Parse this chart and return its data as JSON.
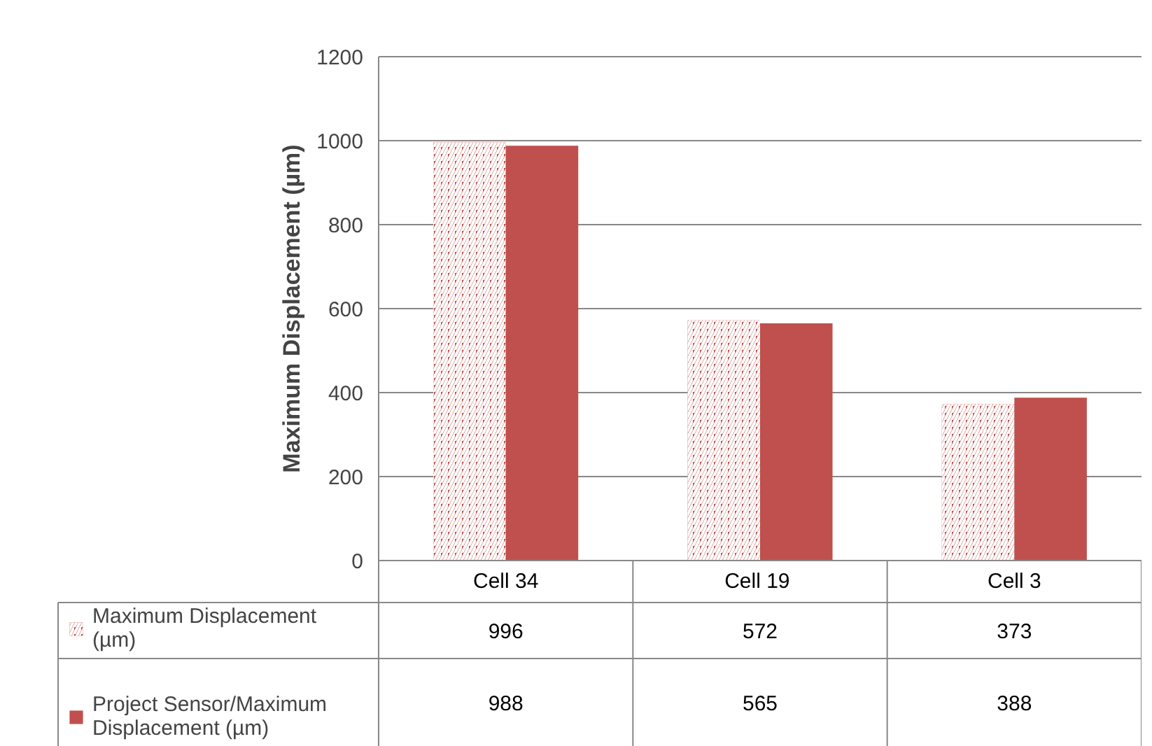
{
  "chart_data": {
    "type": "bar",
    "ylabel": "Maximum Displacement (µm)",
    "categories": [
      "Cell 34",
      "Cell  19",
      "Cell 3"
    ],
    "series": [
      {
        "name": "Maximum Displacement (µm)",
        "color": "#c0504d",
        "values": [
          996,
          572,
          373
        ]
      },
      {
        "name": "Project Sensor/Maximum Displacement (µm)",
        "color": "#c0504d",
        "values": [
          988,
          565,
          388
        ]
      }
    ],
    "ylim": [
      0,
      1200
    ],
    "yticks": [
      0,
      200,
      400,
      600,
      800,
      1000,
      1200
    ],
    "grid": "y",
    "legend": "bottom left",
    "data_labels": true
  }
}
